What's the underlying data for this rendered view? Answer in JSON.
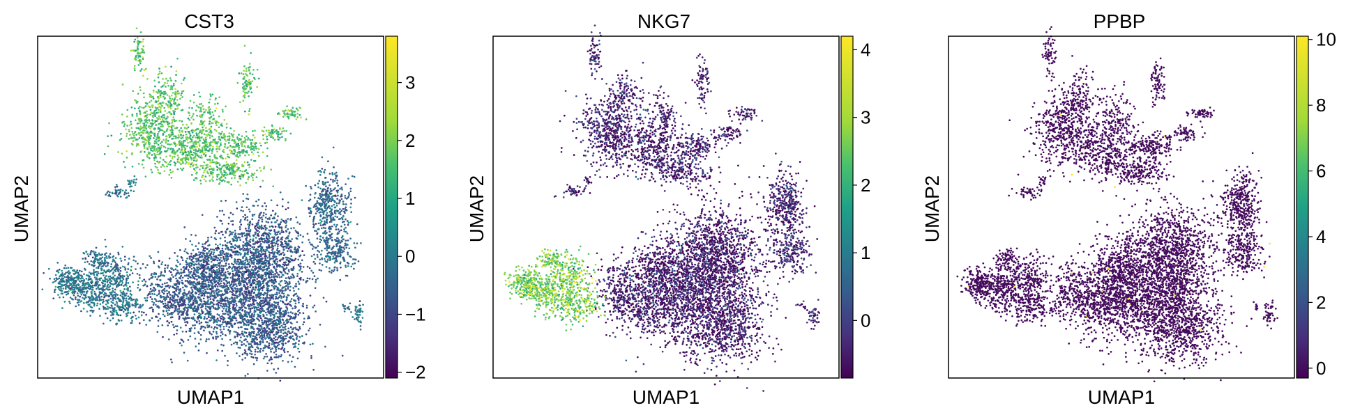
{
  "chart_data": [
    {
      "type": "scatter",
      "title": "CST3",
      "xlabel": "UMAP1",
      "ylabel": "UMAP2",
      "colormap": "viridis",
      "colorbar": {
        "min": -2.1,
        "max": 3.8,
        "ticks": [
          -2,
          -1,
          0,
          1,
          2,
          3
        ],
        "tick_labels": [
          "−2",
          "−1",
          "0",
          "1",
          "2",
          "3"
        ]
      },
      "grid": false,
      "legend": "colorbar-right",
      "expression_by_cluster": {
        "top_cluster": 2.2,
        "bottom_cluster": -0.4,
        "left_cluster": 0.2,
        "right_cluster": -0.1,
        "small_clusters": 0.2
      }
    },
    {
      "type": "scatter",
      "title": "NKG7",
      "xlabel": "UMAP1",
      "ylabel": "UMAP2",
      "colormap": "viridis",
      "colorbar": {
        "min": -0.85,
        "max": 4.2,
        "ticks": [
          0,
          1,
          2,
          3,
          4
        ],
        "tick_labels": [
          "0",
          "1",
          "2",
          "3",
          "4"
        ]
      },
      "grid": false,
      "legend": "colorbar-right",
      "expression_by_cluster": {
        "top_cluster": -0.4,
        "bottom_cluster": -0.5,
        "left_cluster": 3.1,
        "right_cluster": -0.4,
        "small_clusters": -0.3
      }
    },
    {
      "type": "scatter",
      "title": "PPBP",
      "xlabel": "UMAP1",
      "ylabel": "UMAP2",
      "colormap": "viridis",
      "colorbar": {
        "min": -0.3,
        "max": 10.1,
        "ticks": [
          0,
          2,
          4,
          6,
          8,
          10
        ],
        "tick_labels": [
          "0",
          "2",
          "4",
          "6",
          "8",
          "10"
        ]
      },
      "grid": false,
      "legend": "colorbar-right",
      "expression_by_cluster": {
        "top_cluster": 0.0,
        "bottom_cluster": 0.0,
        "left_cluster": 0.0,
        "right_cluster": 0.0,
        "small_clusters": 0.0,
        "sparse_high_cells": 10.0
      }
    }
  ]
}
